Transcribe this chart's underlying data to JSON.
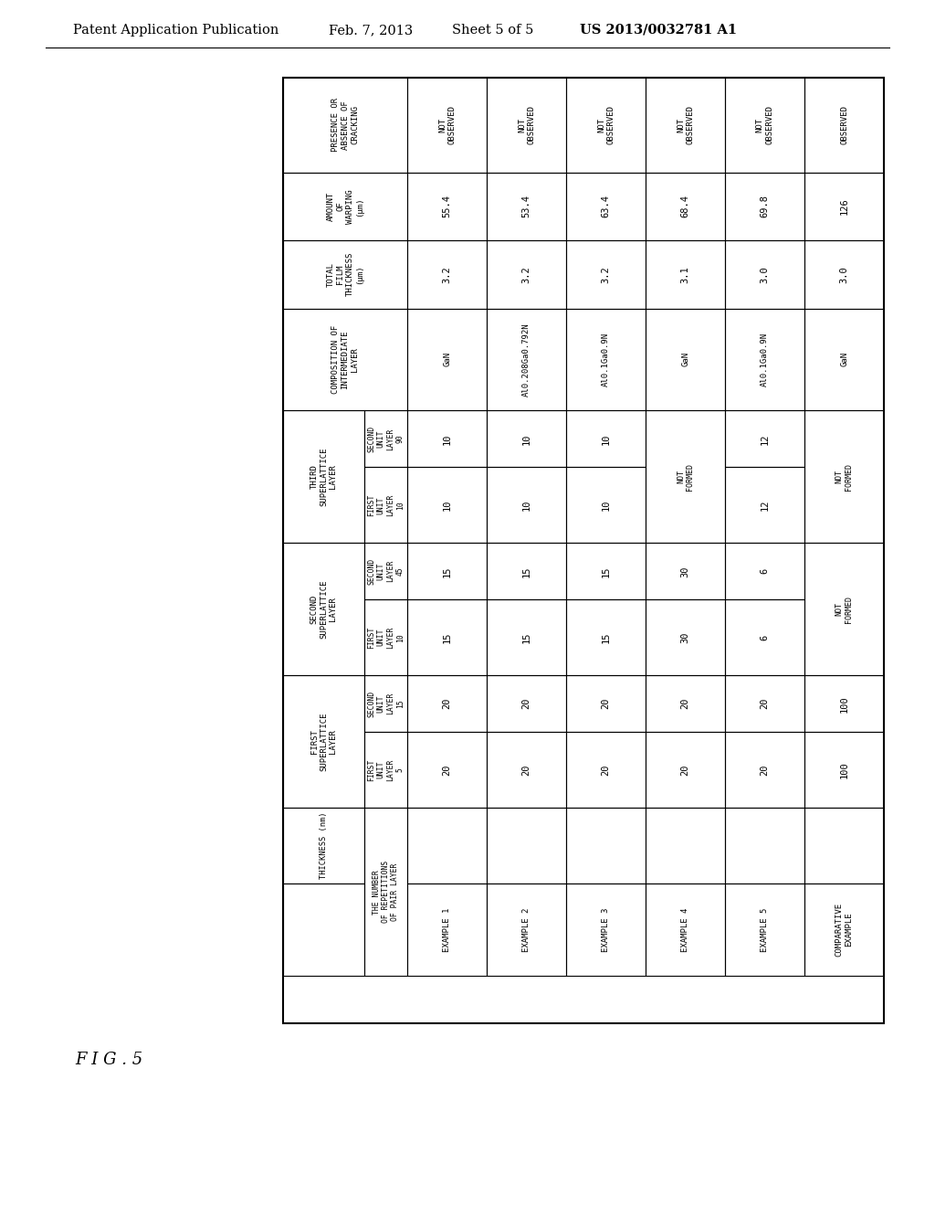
{
  "header_top": "Patent Application Publication",
  "header_date": "Feb. 7, 2013",
  "header_sheet": "Sheet 5 of 5",
  "header_patent": "US 2013/0032781 A1",
  "fig_label": "F I G . 5",
  "examples": [
    {
      "label": "EXAMPLE 1",
      "sl1_f": "20",
      "sl1_s": "20",
      "sl2_f": "15",
      "sl2_s": "15",
      "sl3_f": "10",
      "sl3_s": "10",
      "comp": "GaN",
      "total": "3.2",
      "warp": "55.4",
      "crack": "NOT\nOBSERVED"
    },
    {
      "label": "EXAMPLE 2",
      "sl1_f": "20",
      "sl1_s": "20",
      "sl2_f": "15",
      "sl2_s": "15",
      "sl3_f": "10",
      "sl3_s": "10",
      "comp": "Al0.208Ga0.792N",
      "total": "3.2",
      "warp": "53.4",
      "crack": "NOT\nOBSERVED"
    },
    {
      "label": "EXAMPLE 3",
      "sl1_f": "20",
      "sl1_s": "20",
      "sl2_f": "15",
      "sl2_s": "15",
      "sl3_f": "10",
      "sl3_s": "10",
      "comp": "Al0.1Ga0.9N",
      "total": "3.2",
      "warp": "63.4",
      "crack": "NOT\nOBSERVED"
    },
    {
      "label": "EXAMPLE 4",
      "sl1_f": "20",
      "sl1_s": "20",
      "sl2_f": "30",
      "sl2_s": "30",
      "sl3_f": "NOT FORMED",
      "sl3_s": "",
      "comp": "GaN",
      "total": "3.1",
      "warp": "68.4",
      "crack": "NOT\nOBSERVED"
    },
    {
      "label": "EXAMPLE 5",
      "sl1_f": "20",
      "sl1_s": "20",
      "sl2_f": "6",
      "sl2_s": "6",
      "sl3_f": "12",
      "sl3_s": "12",
      "comp": "Al0.1Ga0.9N",
      "total": "3.0",
      "warp": "69.8",
      "crack": "NOT\nOBSERVED"
    },
    {
      "label": "COMPARATIVE\nEXAMPLE",
      "sl1_f": "100",
      "sl1_s": "100",
      "sl2_f": "NOT FORMED",
      "sl2_s": "",
      "sl3_f": "NOT FORMED",
      "sl3_s": "",
      "comp": "GaN",
      "total": "3.0",
      "warp": "126",
      "crack": "OBSERVED"
    }
  ]
}
